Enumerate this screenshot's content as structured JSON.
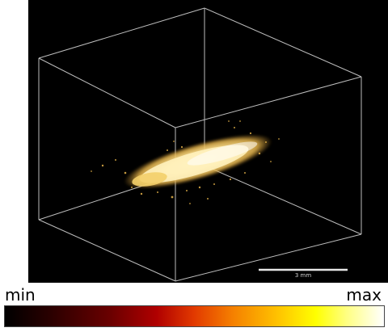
{
  "colorbar": {
    "min_label": "min",
    "max_label": "max"
  },
  "scale_bar": {
    "label": "3 mm"
  },
  "colors": {
    "background": "#000000",
    "box_edges": "#bdbdbd",
    "volume": "#f6d77a",
    "volume_core": "#fff3c4"
  }
}
